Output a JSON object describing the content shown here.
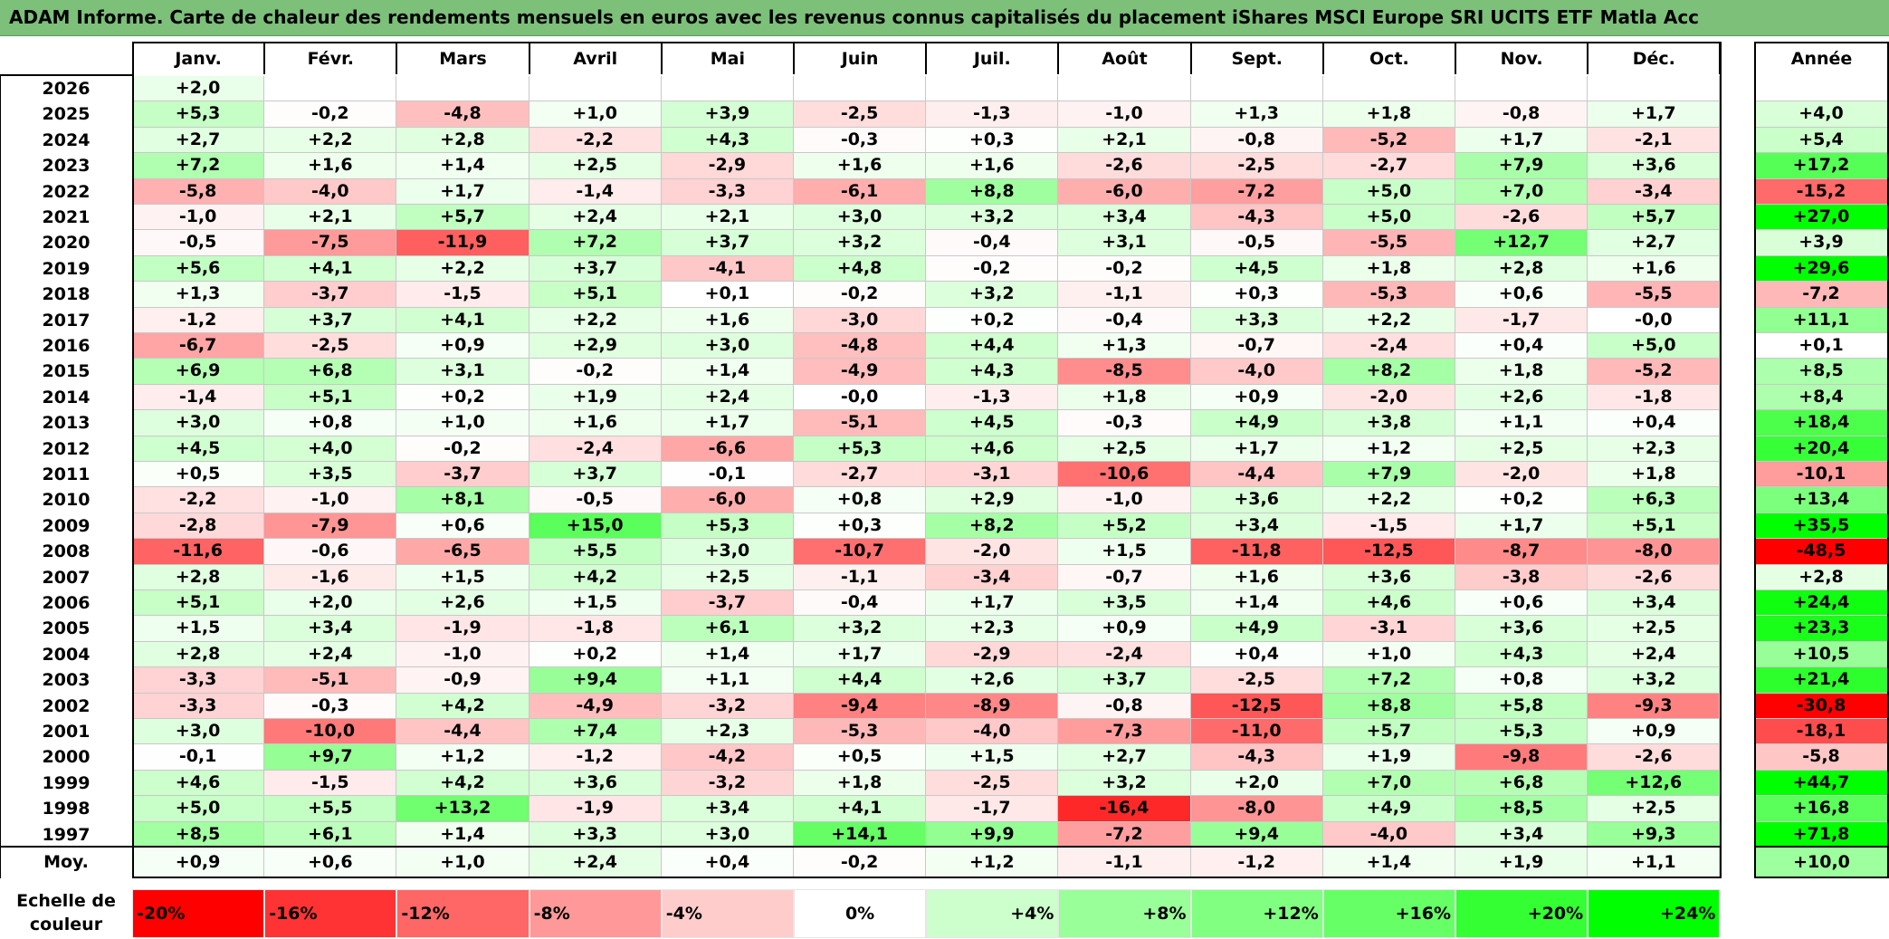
{
  "title": "ADAM Informe. Carte de chaleur des rendements mensuels en euros avec les revenus connus capitalisés du placement iShares MSCI Europe SRI UCITS ETF Matla Acc",
  "chart_data": {
    "type": "heatmap",
    "columns": [
      "Janv.",
      "Févr.",
      "Mars",
      "Avril",
      "Mai",
      "Juin",
      "Juil.",
      "Août",
      "Sept.",
      "Oct.",
      "Nov.",
      "Déc."
    ],
    "year_column": "Année",
    "rows": [
      {
        "year": "2026",
        "months": [
          "+2,0",
          "",
          "",
          "",
          "",
          "",
          "",
          "",
          "",
          "",
          "",
          ""
        ],
        "annual": ""
      },
      {
        "year": "2025",
        "months": [
          "+5,3",
          "-0,2",
          "-4,8",
          "+1,0",
          "+3,9",
          "-2,5",
          "-1,3",
          "-1,0",
          "+1,3",
          "+1,8",
          "-0,8",
          "+1,7"
        ],
        "annual": "+4,0"
      },
      {
        "year": "2024",
        "months": [
          "+2,7",
          "+2,2",
          "+2,8",
          "-2,2",
          "+4,3",
          "-0,3",
          "+0,3",
          "+2,1",
          "-0,8",
          "-5,2",
          "+1,7",
          "-2,1"
        ],
        "annual": "+5,4"
      },
      {
        "year": "2023",
        "months": [
          "+7,2",
          "+1,6",
          "+1,4",
          "+2,5",
          "-2,9",
          "+1,6",
          "+1,6",
          "-2,6",
          "-2,5",
          "-2,7",
          "+7,9",
          "+3,6"
        ],
        "annual": "+17,2"
      },
      {
        "year": "2022",
        "months": [
          "-5,8",
          "-4,0",
          "+1,7",
          "-1,4",
          "-3,3",
          "-6,1",
          "+8,8",
          "-6,0",
          "-7,2",
          "+5,0",
          "+7,0",
          "-3,4"
        ],
        "annual": "-15,2"
      },
      {
        "year": "2021",
        "months": [
          "-1,0",
          "+2,1",
          "+5,7",
          "+2,4",
          "+2,1",
          "+3,0",
          "+3,2",
          "+3,4",
          "-4,3",
          "+5,0",
          "-2,6",
          "+5,7"
        ],
        "annual": "+27,0"
      },
      {
        "year": "2020",
        "months": [
          "-0,5",
          "-7,5",
          "-11,9",
          "+7,2",
          "+3,7",
          "+3,2",
          "-0,4",
          "+3,1",
          "-0,5",
          "-5,5",
          "+12,7",
          "+2,7"
        ],
        "annual": "+3,9"
      },
      {
        "year": "2019",
        "months": [
          "+5,6",
          "+4,1",
          "+2,2",
          "+3,7",
          "-4,1",
          "+4,8",
          "-0,2",
          "-0,2",
          "+4,5",
          "+1,8",
          "+2,8",
          "+1,6"
        ],
        "annual": "+29,6"
      },
      {
        "year": "2018",
        "months": [
          "+1,3",
          "-3,7",
          "-1,5",
          "+5,1",
          "+0,1",
          "-0,2",
          "+3,2",
          "-1,1",
          "+0,3",
          "-5,3",
          "+0,6",
          "-5,5"
        ],
        "annual": "-7,2"
      },
      {
        "year": "2017",
        "months": [
          "-1,2",
          "+3,7",
          "+4,1",
          "+2,2",
          "+1,6",
          "-3,0",
          "+0,2",
          "-0,4",
          "+3,3",
          "+2,2",
          "-1,7",
          "-0,0"
        ],
        "annual": "+11,1"
      },
      {
        "year": "2016",
        "months": [
          "-6,7",
          "-2,5",
          "+0,9",
          "+2,9",
          "+3,0",
          "-4,8",
          "+4,4",
          "+1,3",
          "-0,7",
          "-2,4",
          "+0,4",
          "+5,0"
        ],
        "annual": "+0,1"
      },
      {
        "year": "2015",
        "months": [
          "+6,9",
          "+6,8",
          "+3,1",
          "-0,2",
          "+1,4",
          "-4,9",
          "+4,3",
          "-8,5",
          "-4,0",
          "+8,2",
          "+1,8",
          "-5,2"
        ],
        "annual": "+8,5"
      },
      {
        "year": "2014",
        "months": [
          "-1,4",
          "+5,1",
          "+0,2",
          "+1,9",
          "+2,4",
          "-0,0",
          "-1,3",
          "+1,8",
          "+0,9",
          "-2,0",
          "+2,6",
          "-1,8"
        ],
        "annual": "+8,4"
      },
      {
        "year": "2013",
        "months": [
          "+3,0",
          "+0,8",
          "+1,0",
          "+1,6",
          "+1,7",
          "-5,1",
          "+4,5",
          "-0,3",
          "+4,9",
          "+3,8",
          "+1,1",
          "+0,4"
        ],
        "annual": "+18,4"
      },
      {
        "year": "2012",
        "months": [
          "+4,5",
          "+4,0",
          "-0,2",
          "-2,4",
          "-6,6",
          "+5,3",
          "+4,6",
          "+2,5",
          "+1,7",
          "+1,2",
          "+2,5",
          "+2,3"
        ],
        "annual": "+20,4"
      },
      {
        "year": "2011",
        "months": [
          "+0,5",
          "+3,5",
          "-3,7",
          "+3,7",
          "-0,1",
          "-2,7",
          "-3,1",
          "-10,6",
          "-4,4",
          "+7,9",
          "-2,0",
          "+1,8"
        ],
        "annual": "-10,1"
      },
      {
        "year": "2010",
        "months": [
          "-2,2",
          "-1,0",
          "+8,1",
          "-0,5",
          "-6,0",
          "+0,8",
          "+2,9",
          "-1,0",
          "+3,6",
          "+2,2",
          "+0,2",
          "+6,3"
        ],
        "annual": "+13,4"
      },
      {
        "year": "2009",
        "months": [
          "-2,8",
          "-7,9",
          "+0,6",
          "+15,0",
          "+5,3",
          "+0,3",
          "+8,2",
          "+5,2",
          "+3,4",
          "-1,5",
          "+1,7",
          "+5,1"
        ],
        "annual": "+35,5"
      },
      {
        "year": "2008",
        "months": [
          "-11,6",
          "-0,6",
          "-6,5",
          "+5,5",
          "+3,0",
          "-10,7",
          "-2,0",
          "+1,5",
          "-11,8",
          "-12,5",
          "-8,7",
          "-8,0"
        ],
        "annual": "-48,5"
      },
      {
        "year": "2007",
        "months": [
          "+2,8",
          "-1,6",
          "+1,5",
          "+4,2",
          "+2,5",
          "-1,1",
          "-3,4",
          "-0,7",
          "+1,6",
          "+3,6",
          "-3,8",
          "-2,6"
        ],
        "annual": "+2,8"
      },
      {
        "year": "2006",
        "months": [
          "+5,1",
          "+2,0",
          "+2,6",
          "+1,5",
          "-3,7",
          "-0,4",
          "+1,7",
          "+3,5",
          "+1,4",
          "+4,6",
          "+0,6",
          "+3,4"
        ],
        "annual": "+24,4"
      },
      {
        "year": "2005",
        "months": [
          "+1,5",
          "+3,4",
          "-1,9",
          "-1,8",
          "+6,1",
          "+3,2",
          "+2,3",
          "+0,9",
          "+4,9",
          "-3,1",
          "+3,6",
          "+2,5"
        ],
        "annual": "+23,3"
      },
      {
        "year": "2004",
        "months": [
          "+2,8",
          "+2,4",
          "-1,0",
          "+0,2",
          "+1,4",
          "+1,7",
          "-2,9",
          "-2,4",
          "+0,4",
          "+1,0",
          "+4,3",
          "+2,4"
        ],
        "annual": "+10,5"
      },
      {
        "year": "2003",
        "months": [
          "-3,3",
          "-5,1",
          "-0,9",
          "+9,4",
          "+1,1",
          "+4,4",
          "+2,6",
          "+3,7",
          "-2,5",
          "+7,2",
          "+0,8",
          "+3,2"
        ],
        "annual": "+21,4"
      },
      {
        "year": "2002",
        "months": [
          "-3,3",
          "-0,3",
          "+4,2",
          "-4,9",
          "-3,2",
          "-9,4",
          "-8,9",
          "-0,8",
          "-12,5",
          "+8,8",
          "+5,8",
          "-9,3"
        ],
        "annual": "-30,8"
      },
      {
        "year": "2001",
        "months": [
          "+3,0",
          "-10,0",
          "-4,4",
          "+7,4",
          "+2,3",
          "-5,3",
          "-4,0",
          "-7,3",
          "-11,0",
          "+5,7",
          "+5,3",
          "+0,9"
        ],
        "annual": "-18,1"
      },
      {
        "year": "2000",
        "months": [
          "-0,1",
          "+9,7",
          "+1,2",
          "-1,2",
          "-4,2",
          "+0,5",
          "+1,5",
          "+2,7",
          "-4,3",
          "+1,9",
          "-9,8",
          "-2,6"
        ],
        "annual": "-5,8"
      },
      {
        "year": "1999",
        "months": [
          "+4,6",
          "-1,5",
          "+4,2",
          "+3,6",
          "-3,2",
          "+1,8",
          "-2,5",
          "+3,2",
          "+2,0",
          "+7,0",
          "+6,8",
          "+12,6"
        ],
        "annual": "+44,7"
      },
      {
        "year": "1998",
        "months": [
          "+5,0",
          "+5,5",
          "+13,2",
          "-1,9",
          "+3,4",
          "+4,1",
          "-1,7",
          "-16,4",
          "-8,0",
          "+4,9",
          "+8,5",
          "+2,5"
        ],
        "annual": "+16,8"
      },
      {
        "year": "1997",
        "months": [
          "+8,5",
          "+6,1",
          "+1,4",
          "+3,3",
          "+3,0",
          "+14,1",
          "+9,9",
          "-7,2",
          "+9,4",
          "-4,0",
          "+3,4",
          "+9,3"
        ],
        "annual": "+71,8"
      }
    ],
    "average": {
      "label": "Moy.",
      "months": [
        "+0,9",
        "+0,6",
        "+1,0",
        "+2,4",
        "+0,4",
        "-0,2",
        "+1,2",
        "-1,1",
        "-1,2",
        "+1,4",
        "+1,9",
        "+1,1"
      ],
      "annual": "+10,0"
    },
    "scale": {
      "label": "Echelle de couleur",
      "steps": [
        "-20%",
        "-16%",
        "-12%",
        "-8%",
        "-4%",
        "0%",
        "+4%",
        "+8%",
        "+12%",
        "+16%",
        "+20%",
        "+24%"
      ],
      "colors": [
        "#ff0000",
        "#ff3333",
        "#ff6666",
        "#ff9999",
        "#ffcccc",
        "#ffffff",
        "#ccffcc",
        "#99ff99",
        "#80ff80",
        "#66ff66",
        "#33ff33",
        "#00ff00"
      ]
    }
  }
}
